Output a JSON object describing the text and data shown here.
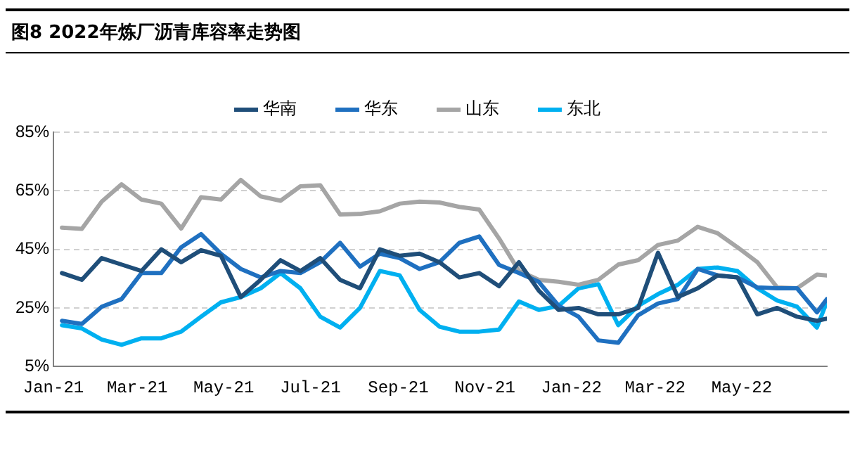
{
  "chart_data": {
    "type": "line",
    "title": "图8 2022年炼厂沥青库容率走势图",
    "x": [
      "2021-01-07",
      "2021-01-21",
      "2021-02-04",
      "2021-02-18",
      "2021-03-04",
      "2021-03-18",
      "2021-04-01",
      "2021-04-15",
      "2021-04-29",
      "2021-05-13",
      "2021-05-27",
      "2021-06-10",
      "2021-06-24",
      "2021-07-08",
      "2021-07-22",
      "2021-08-05",
      "2021-08-19",
      "2021-09-02",
      "2021-09-16",
      "2021-09-30",
      "2021-10-14",
      "2021-10-28",
      "2021-11-11",
      "2021-11-25",
      "2021-12-09",
      "2021-12-23",
      "2022-01-06",
      "2022-01-20",
      "2022-02-03",
      "2022-02-17",
      "2022-03-03",
      "2022-03-17",
      "2022-03-31",
      "2022-04-14",
      "2022-04-28",
      "2022-05-12",
      "2022-05-26",
      "2022-06-09",
      "2022-06-23",
      "2022-06-30"
    ],
    "series": [
      {
        "name": "华南",
        "color": "#1f4e79",
        "values": [
          36.9,
          34.6,
          42.0,
          39.8,
          37.6,
          45.0,
          40.6,
          44.7,
          42.8,
          28.7,
          34.6,
          41.3,
          37.6,
          42.0,
          34.6,
          31.7,
          45.0,
          42.8,
          43.5,
          40.6,
          35.4,
          36.9,
          32.4,
          40.6,
          30.9,
          24.3,
          25.0,
          22.8,
          22.8,
          25.0,
          43.8,
          28.7,
          31.7,
          36.1,
          35.4,
          22.8,
          25.0,
          22.0,
          20.6,
          21.3
        ]
      },
      {
        "name": "华东",
        "color": "#1f70c0",
        "values": [
          20.6,
          19.5,
          25.4,
          28.0,
          36.9,
          36.9,
          45.7,
          50.2,
          43.5,
          38.3,
          35.4,
          37.6,
          36.9,
          40.6,
          47.2,
          39.1,
          43.5,
          42.0,
          38.3,
          40.6,
          47.2,
          49.4,
          39.7,
          36.9,
          33.9,
          25.7,
          22.0,
          13.9,
          13.1,
          22.5,
          26.5,
          28.0,
          38.3,
          36.1,
          35.4,
          32.0,
          31.7,
          31.7,
          23.5,
          28.0
        ]
      },
      {
        "name": "山东",
        "color": "#a5a5a5",
        "values": [
          52.4,
          52.0,
          61.3,
          67.2,
          62.0,
          60.6,
          52.1,
          62.8,
          62.0,
          68.7,
          63.1,
          61.6,
          66.5,
          66.9,
          56.9,
          57.1,
          58.0,
          60.6,
          61.3,
          61.0,
          59.5,
          58.6,
          48.7,
          37.6,
          34.6,
          33.9,
          32.9,
          34.6,
          39.8,
          41.3,
          46.5,
          48.0,
          52.7,
          50.5,
          45.7,
          40.6,
          32.0,
          31.7,
          36.4,
          36.1
        ]
      },
      {
        "name": "东北",
        "color": "#00b0f0",
        "values": [
          19.1,
          18.0,
          14.2,
          12.4,
          14.6,
          14.6,
          16.9,
          22.0,
          26.9,
          28.7,
          31.7,
          36.9,
          31.7,
          22.0,
          18.3,
          25.0,
          37.6,
          36.1,
          24.3,
          18.6,
          16.9,
          16.9,
          17.6,
          27.2,
          24.3,
          25.7,
          31.7,
          33.1,
          19.1,
          25.7,
          29.7,
          32.9,
          38.3,
          38.8,
          37.6,
          31.7,
          27.5,
          25.4,
          18.3,
          27.2
        ]
      }
    ],
    "xlim": [
      "2021-01-01",
      "2022-06-30"
    ],
    "xticks": [
      {
        "value": "2021-01-01",
        "label": "Jan-21"
      },
      {
        "value": "2021-03-01",
        "label": "Mar-21"
      },
      {
        "value": "2021-05-01",
        "label": "May-21"
      },
      {
        "value": "2021-07-01",
        "label": "Jul-21"
      },
      {
        "value": "2021-09-01",
        "label": "Sep-21"
      },
      {
        "value": "2021-11-01",
        "label": "Nov-21"
      },
      {
        "value": "2022-01-01",
        "label": "Jan-22"
      },
      {
        "value": "2022-03-01",
        "label": "Mar-22"
      },
      {
        "value": "2022-05-01",
        "label": "May-22"
      }
    ],
    "ylim": [
      5,
      85
    ],
    "yticks": [
      {
        "value": 5,
        "label": "5%"
      },
      {
        "value": 25,
        "label": "25%"
      },
      {
        "value": 45,
        "label": "45%"
      },
      {
        "value": 65,
        "label": "65%"
      },
      {
        "value": 85,
        "label": "85%"
      }
    ],
    "grid": "y",
    "legend": "top",
    "marker": "none",
    "line_style": "solid"
  }
}
